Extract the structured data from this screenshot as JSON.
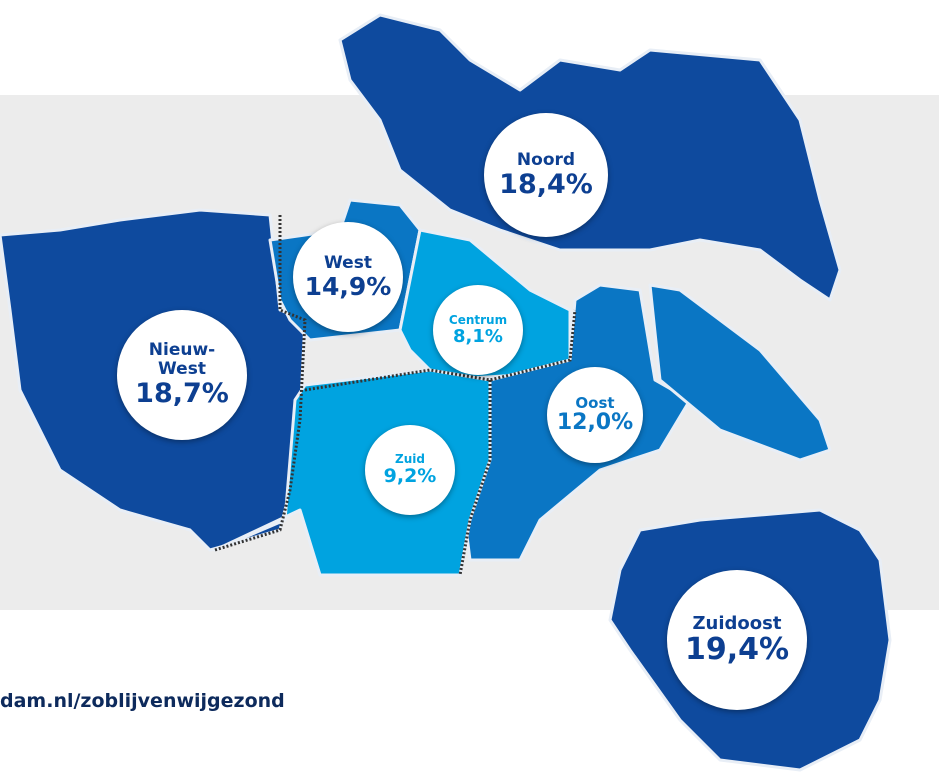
{
  "districts": [
    {
      "name": "Noord",
      "value": "18,4%"
    },
    {
      "name": "West",
      "value": "14,9%"
    },
    {
      "name": "Centrum",
      "value": "8,1%"
    },
    {
      "name": "Nieuw-West",
      "value": "18,7%"
    },
    {
      "name": "Oost",
      "value": "12,0%"
    },
    {
      "name": "Zuid",
      "value": "9,2%"
    },
    {
      "name": "Zuidoost",
      "value": "19,4%"
    }
  ],
  "footer": "dam.nl/zoblijvenwijgezond"
}
